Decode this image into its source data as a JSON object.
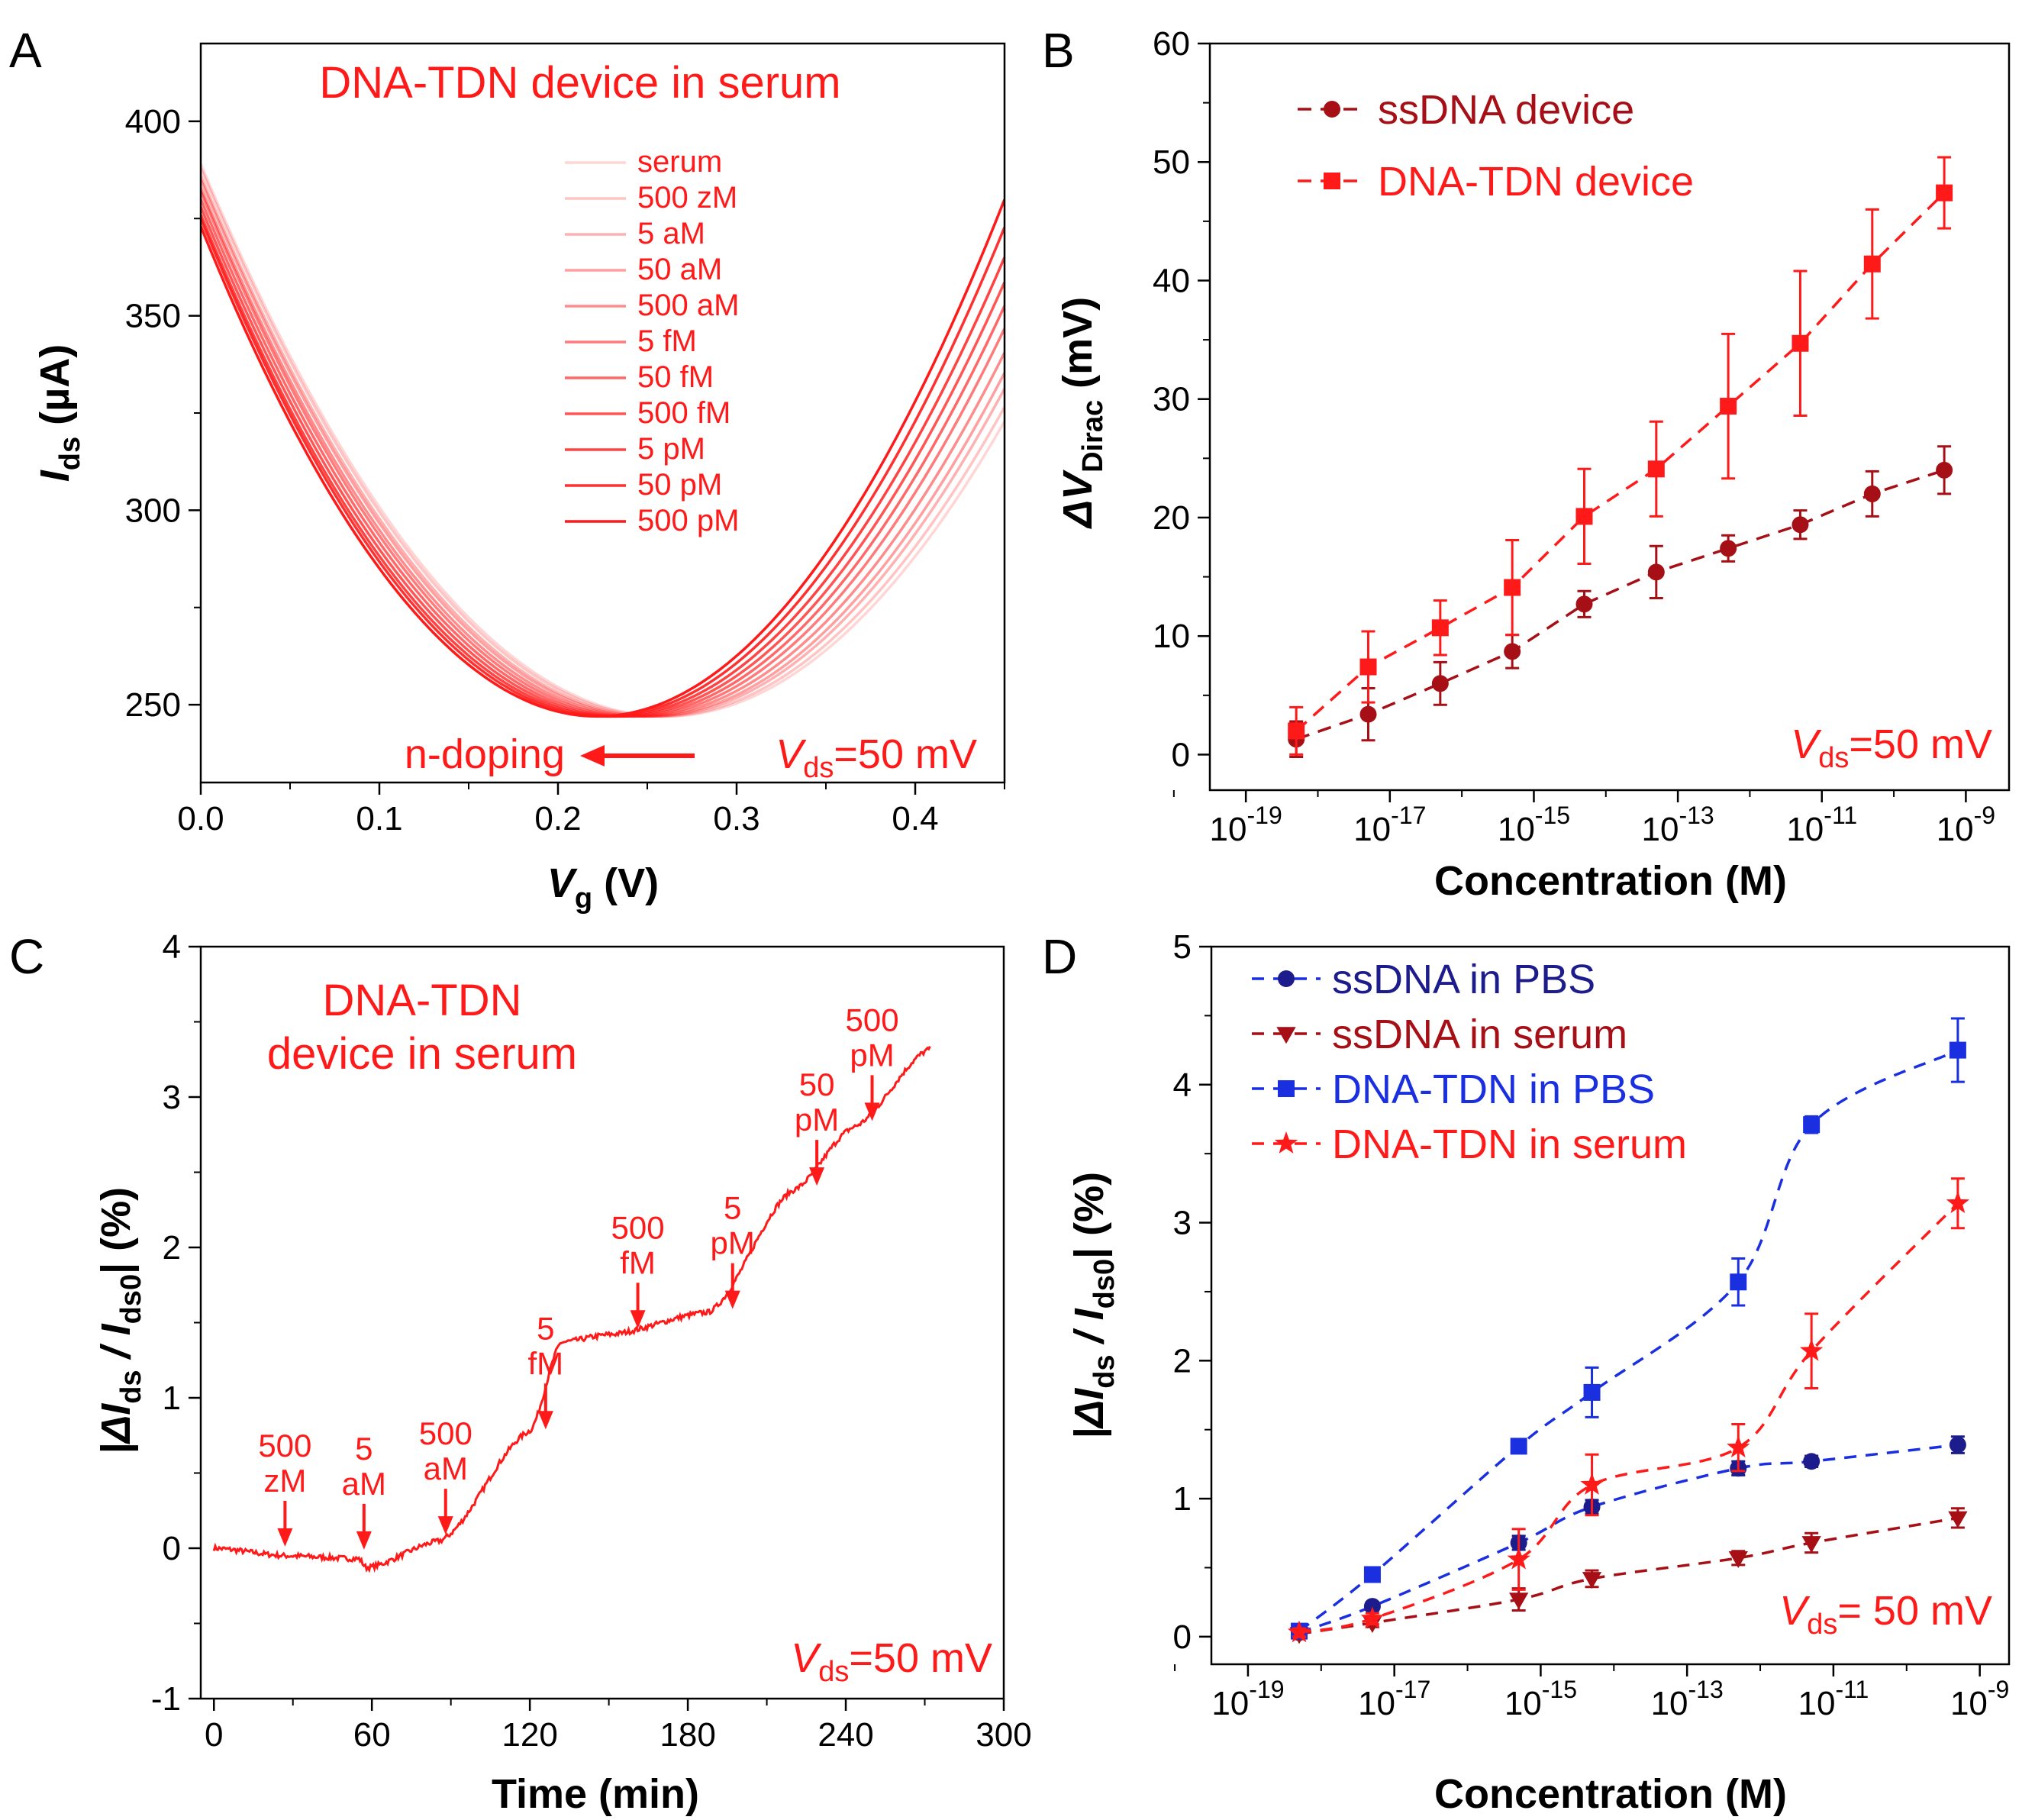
{
  "colors": {
    "red": "#ff1a1a",
    "darkred": "#a50f15",
    "blue": "#1a2fe0",
    "navy": "#1c1c8c",
    "black": "#000000"
  },
  "chart_data": [
    {
      "panel": "A",
      "type": "line",
      "title": "DNA-TDN device  in serum",
      "xlabel": "V",
      "xlabel_sub": "g",
      "xlabel_unit": "(V)",
      "ylabel": "I",
      "ylabel_sub": "ds",
      "ylabel_unit": "(µA)",
      "xlim": [
        0,
        0.45
      ],
      "ylim": [
        230,
        420
      ],
      "xticks": [
        "0.0",
        "0.1",
        "0.2",
        "0.3",
        "0.4"
      ],
      "xtick_values": [
        0,
        0.1,
        0.2,
        0.3,
        0.4
      ],
      "yticks": [
        "250",
        "300",
        "350",
        "400"
      ],
      "ytick_values": [
        250,
        300,
        350,
        400
      ],
      "annotation_arrow": "n-doping",
      "vds_label": {
        "main": "V",
        "sub": "ds",
        "rest": "=50 mV"
      },
      "curve_model": "quadratic V-shape around Dirac point",
      "series": [
        {
          "name": "serum",
          "dirac_v": 0.26,
          "i_min": 247,
          "i_at_0": 389,
          "opacity": 0.18
        },
        {
          "name": "500 zM",
          "dirac_v": 0.257,
          "i_min": 247,
          "i_at_0": 388,
          "opacity": 0.26
        },
        {
          "name": "5 aM",
          "dirac_v": 0.253,
          "i_min": 247,
          "i_at_0": 386,
          "opacity": 0.34
        },
        {
          "name": "50 aM",
          "dirac_v": 0.25,
          "i_min": 247,
          "i_at_0": 385,
          "opacity": 0.42
        },
        {
          "name": "500 aM",
          "dirac_v": 0.246,
          "i_min": 247,
          "i_at_0": 383,
          "opacity": 0.5
        },
        {
          "name": "5 fM",
          "dirac_v": 0.242,
          "i_min": 247,
          "i_at_0": 382,
          "opacity": 0.58
        },
        {
          "name": "50 fM",
          "dirac_v": 0.238,
          "i_min": 247,
          "i_at_0": 380,
          "opacity": 0.66
        },
        {
          "name": "500 fM",
          "dirac_v": 0.234,
          "i_min": 247,
          "i_at_0": 378,
          "opacity": 0.74
        },
        {
          "name": "5 pM",
          "dirac_v": 0.23,
          "i_min": 247,
          "i_at_0": 376,
          "opacity": 0.82
        },
        {
          "name": "50 pM",
          "dirac_v": 0.226,
          "i_min": 247,
          "i_at_0": 375,
          "opacity": 0.9
        },
        {
          "name": "500 pM",
          "dirac_v": 0.222,
          "i_min": 247,
          "i_at_0": 373,
          "opacity": 1.0
        }
      ]
    },
    {
      "panel": "B",
      "type": "scatter",
      "xlabel": "Concentration (M)",
      "ylabel": "ΔV",
      "ylabel_sub": "Dirac",
      "ylabel_unit": "(mV)",
      "xscale": "log",
      "xlim_exp": [
        -19.5,
        -8.4
      ],
      "ylim": [
        -3,
        60
      ],
      "xticks_exp": [
        -19,
        -17,
        -15,
        -13,
        -11,
        -9
      ],
      "yticks": [
        "0",
        "10",
        "20",
        "30",
        "40",
        "50",
        "60"
      ],
      "ytick_values": [
        0,
        10,
        20,
        30,
        40,
        50,
        60
      ],
      "legend_position": "top-left",
      "vds_label": {
        "main": "V",
        "sub": "ds",
        "rest": "=50 mV"
      },
      "x_exp": [
        -18.3,
        -17.3,
        -16.3,
        -15.3,
        -14.3,
        -13.3,
        -12.3,
        -11.3,
        -10.3,
        -9.3
      ],
      "series": [
        {
          "name": "ssDNA device",
          "marker": "circle",
          "color": "#a50f15",
          "values": [
            1.3,
            3.4,
            6.0,
            8.7,
            12.7,
            15.4,
            17.4,
            19.4,
            22.0,
            24.0
          ],
          "errors": [
            1.5,
            2.2,
            1.8,
            1.4,
            1.1,
            2.2,
            1.1,
            1.2,
            1.9,
            2.0
          ]
        },
        {
          "name": "DNA-TDN device",
          "marker": "square",
          "color": "#ff1a1a",
          "values": [
            2.0,
            7.4,
            10.7,
            14.1,
            20.1,
            24.1,
            29.4,
            34.7,
            41.4,
            47.4
          ],
          "errors": [
            2.0,
            3.0,
            2.3,
            4.0,
            4.0,
            4.0,
            6.1,
            6.1,
            4.6,
            3.0
          ]
        }
      ]
    },
    {
      "panel": "C",
      "type": "line",
      "title_lines": [
        "DNA-TDN",
        "device in serum"
      ],
      "xlabel": "Time (min)",
      "ylabel": "|ΔI",
      "ylabel_sub": "ds",
      "ylabel_mid": " / I",
      "ylabel_sub2": "ds0",
      "ylabel_unit": "| (%)",
      "xlim": [
        -5,
        300
      ],
      "ylim": [
        -1,
        4
      ],
      "xticks": [
        "0",
        "60",
        "120",
        "180",
        "240",
        "300"
      ],
      "xtick_values": [
        0,
        60,
        120,
        180,
        240,
        300
      ],
      "yticks": [
        "-1",
        "0",
        "1",
        "2",
        "3",
        "4"
      ],
      "ytick_values": [
        -1,
        0,
        1,
        2,
        3,
        4
      ],
      "vds_label": {
        "main": "V",
        "sub": "ds",
        "rest": "=50 mV"
      },
      "trace_steps": [
        {
          "t": 0,
          "y": 0.0
        },
        {
          "t": 27,
          "y": -0.05
        },
        {
          "t": 55,
          "y": -0.07
        },
        {
          "t": 58,
          "y": -0.13
        },
        {
          "t": 86,
          "y": 0.05
        },
        {
          "t": 120,
          "y": 0.78
        },
        {
          "t": 132,
          "y": 1.37
        },
        {
          "t": 150,
          "y": 1.42
        },
        {
          "t": 188,
          "y": 1.57
        },
        {
          "t": 220,
          "y": 2.38
        },
        {
          "t": 243,
          "y": 2.8
        },
        {
          "t": 272,
          "y": 3.32
        }
      ],
      "annotations": [
        {
          "lines": [
            "500",
            "zM"
          ],
          "t": 27,
          "y": -0.03
        },
        {
          "lines": [
            "5",
            "aM"
          ],
          "t": 57,
          "y": -0.05
        },
        {
          "lines": [
            "500",
            "aM"
          ],
          "t": 88,
          "y": 0.05
        },
        {
          "lines": [
            "5",
            "fM"
          ],
          "t": 126,
          "y": 0.75
        },
        {
          "lines": [
            "500",
            "fM"
          ],
          "t": 161,
          "y": 1.42
        },
        {
          "lines": [
            "5",
            "pM"
          ],
          "t": 197,
          "y": 1.55
        },
        {
          "lines": [
            "50",
            "pM"
          ],
          "t": 229,
          "y": 2.37
        },
        {
          "lines": [
            "500",
            "pM"
          ],
          "t": 250,
          "y": 2.8
        }
      ]
    },
    {
      "panel": "D",
      "type": "scatter",
      "xlabel": "Concentration (M)",
      "ylabel": "|ΔI",
      "ylabel_sub": "ds",
      "ylabel_mid": " / I",
      "ylabel_sub2": "ds0",
      "ylabel_unit": "| (%)",
      "xscale": "log",
      "xlim_exp": [
        -19.5,
        -8.6
      ],
      "ylim": [
        -0.2,
        5
      ],
      "xticks_exp": [
        -19,
        -17,
        -15,
        -13,
        -11,
        -9
      ],
      "yticks": [
        "0",
        "1",
        "2",
        "3",
        "4",
        "5"
      ],
      "ytick_values": [
        0,
        1,
        2,
        3,
        4,
        5
      ],
      "legend_position": "top-left",
      "vds_label": {
        "main": "V",
        "sub": "ds",
        "rest": "= 50 mV"
      },
      "series": [
        {
          "name": "ssDNA in PBS",
          "marker": "circle",
          "color": "#1c1c8c",
          "line_color": "#1a2fe0",
          "x_exp": [
            -18.3,
            -17.3,
            -15.3,
            -14.3,
            -12.3,
            -11.3,
            -9.3
          ],
          "values": [
            0.03,
            0.22,
            0.68,
            0.94,
            1.22,
            1.27,
            1.39
          ],
          "errors": [
            0.03,
            0.03,
            0.05,
            0.05,
            0.05,
            0.04,
            0.06
          ]
        },
        {
          "name": "ssDNA in serum",
          "marker": "triangle-down",
          "color": "#a50f15",
          "line_color": "#a50f15",
          "x_exp": [
            -18.3,
            -17.3,
            -15.3,
            -14.3,
            -12.3,
            -11.3,
            -9.3
          ],
          "values": [
            0.02,
            0.1,
            0.27,
            0.42,
            0.57,
            0.68,
            0.86
          ],
          "errors": [
            0.02,
            0.03,
            0.08,
            0.06,
            0.05,
            0.07,
            0.07
          ]
        },
        {
          "name": "DNA-TDN in PBS",
          "marker": "square",
          "color": "#1a2fe0",
          "line_color": "#1a2fe0",
          "x_exp": [
            -18.3,
            -17.3,
            -15.3,
            -14.3,
            -12.3,
            -11.3,
            -9.3
          ],
          "values": [
            0.04,
            0.45,
            1.38,
            1.77,
            2.57,
            3.71,
            4.25
          ],
          "errors": [
            0.03,
            0.04,
            0.04,
            0.18,
            0.17,
            0.06,
            0.23
          ]
        },
        {
          "name": "DNA-TDN in serum",
          "marker": "star",
          "color": "#ff1a1a",
          "line_color": "#ff1a1a",
          "x_exp": [
            -18.3,
            -17.3,
            -15.3,
            -14.3,
            -12.3,
            -11.3,
            -9.3
          ],
          "values": [
            0.03,
            0.13,
            0.56,
            1.1,
            1.37,
            2.07,
            3.14
          ],
          "errors": [
            0.03,
            0.04,
            0.22,
            0.22,
            0.17,
            0.27,
            0.18
          ]
        }
      ]
    }
  ]
}
